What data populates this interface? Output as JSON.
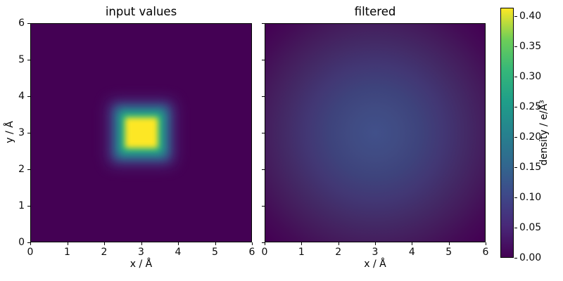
{
  "figure": {
    "panels": [
      {
        "title": "input values",
        "xlabel": "x / Å",
        "ylabel": "y / Å",
        "xticks": [
          "0",
          "1",
          "2",
          "3",
          "4",
          "5",
          "6"
        ],
        "yticks": [
          "0",
          "1",
          "2",
          "3",
          "4",
          "5",
          "6"
        ]
      },
      {
        "title": "filtered",
        "xlabel": "x / Å",
        "xticks": [
          "0",
          "1",
          "2",
          "3",
          "4",
          "5",
          "6"
        ],
        "yticks": [
          "0",
          "1",
          "2",
          "3",
          "4",
          "5",
          "6"
        ],
        "yticks_marks_only": true
      }
    ],
    "colorbar": {
      "label": "density / e/Å³",
      "ticks": [
        "0.00",
        "0.05",
        "0.10",
        "0.15",
        "0.20",
        "0.25",
        "0.30",
        "0.35",
        "0.40"
      ],
      "vmin": 0.0,
      "vmax": 0.414
    }
  },
  "colors": {
    "colormap": "viridis",
    "cmap_low": "#440154",
    "cmap_high": "#fde725",
    "input_peak_color": "#fde725",
    "filtered_peak_color": "#41508a",
    "figure_background": "#ffffff"
  },
  "chart_data": [
    {
      "type": "heatmap",
      "title": "input values",
      "xlabel": "x / Å",
      "ylabel": "y / Å",
      "xlim": [
        0,
        6
      ],
      "ylim": [
        0,
        6
      ],
      "colormap": "viridis",
      "vmin": 0.0,
      "vmax": 0.41,
      "description": "Uniform zero background with a sharp square block of high density centred at (3, 3), side ≈ 0.8 Å, peak value ≈ 0.41 e/Å³, edges slightly smoothed through viridis teal/green bands.",
      "grid_x": [
        0,
        1,
        2,
        3,
        4,
        5,
        6
      ],
      "grid_y": [
        0,
        1,
        2,
        3,
        4,
        5,
        6
      ],
      "values_y_ascending": [
        [
          0.0,
          0.0,
          0.0,
          0.0,
          0.0,
          0.0,
          0.0
        ],
        [
          0.0,
          0.0,
          0.0,
          0.0,
          0.0,
          0.0,
          0.0
        ],
        [
          0.0,
          0.0,
          0.0,
          0.0,
          0.0,
          0.0,
          0.0
        ],
        [
          0.0,
          0.0,
          0.0,
          0.41,
          0.0,
          0.0,
          0.0
        ],
        [
          0.0,
          0.0,
          0.0,
          0.0,
          0.0,
          0.0,
          0.0
        ],
        [
          0.0,
          0.0,
          0.0,
          0.0,
          0.0,
          0.0,
          0.0
        ],
        [
          0.0,
          0.0,
          0.0,
          0.0,
          0.0,
          0.0,
          0.0
        ]
      ]
    },
    {
      "type": "heatmap",
      "title": "filtered",
      "xlabel": "x / Å",
      "ylabel": "",
      "xlim": [
        0,
        6
      ],
      "ylim": [
        0,
        6
      ],
      "colormap": "viridis",
      "vmin": 0.0,
      "vmax": 0.41,
      "description": "Gaussian-filtered version of the input: broad radial blob centred at (3, 3), peak ≈ 0.10 e/Å³, σ ≈ 1.1 Å, fading to 0 at the corners.",
      "grid_x": [
        0,
        1,
        2,
        3,
        4,
        5,
        6
      ],
      "grid_y": [
        0,
        1,
        2,
        3,
        4,
        5,
        6
      ],
      "values_y_ascending": [
        [
          0.0,
          0.001,
          0.002,
          0.002,
          0.002,
          0.001,
          0.0
        ],
        [
          0.001,
          0.004,
          0.013,
          0.019,
          0.013,
          0.004,
          0.001
        ],
        [
          0.002,
          0.013,
          0.044,
          0.066,
          0.044,
          0.013,
          0.002
        ],
        [
          0.002,
          0.019,
          0.066,
          0.1,
          0.066,
          0.019,
          0.002
        ],
        [
          0.002,
          0.013,
          0.044,
          0.066,
          0.044,
          0.013,
          0.002
        ],
        [
          0.001,
          0.004,
          0.013,
          0.019,
          0.013,
          0.004,
          0.001
        ],
        [
          0.0,
          0.001,
          0.002,
          0.002,
          0.002,
          0.001,
          0.0
        ]
      ]
    }
  ]
}
